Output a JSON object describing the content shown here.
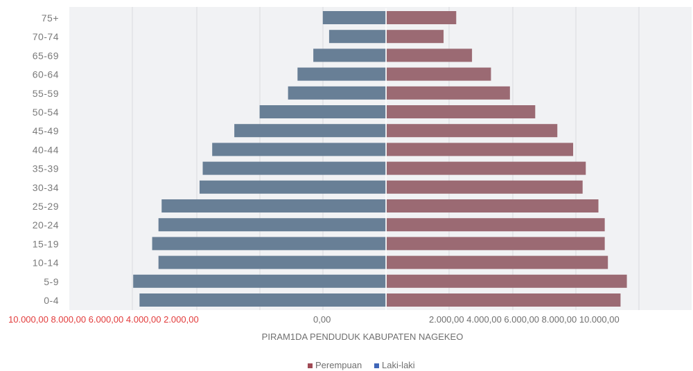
{
  "chart_data": {
    "type": "bar",
    "orientation": "horizontal",
    "title": "",
    "xlabel": "PIRAM1DA PENDUDUK KABUPATEN NAGEKEO",
    "categories": [
      "75+",
      "70-74",
      "65-69",
      "60-64",
      "55-59",
      "50-54",
      "45-49",
      "40-44",
      "35-39",
      "30-34",
      "25-29",
      "20-24",
      "15-19",
      "10-14",
      "5-9",
      "0-4"
    ],
    "series": [
      {
        "name": "Laki-laki",
        "color": "#687f96",
        "values": [
          1000,
          900,
          1150,
          1400,
          1550,
          2000,
          2400,
          2750,
          2900,
          2950,
          3550,
          3600,
          3700,
          3600,
          4000,
          3900
        ]
      },
      {
        "name": "Perempuan",
        "color": "#9b6a73",
        "values": [
          1100,
          900,
          1350,
          1650,
          1950,
          2350,
          2700,
          2950,
          3150,
          3100,
          3350,
          3450,
          3450,
          3500,
          3800,
          3700
        ]
      }
    ],
    "xlim": [
      -10000,
      10000
    ],
    "x_ticks_left": [
      "10.000,00",
      "8.000,00",
      "6.000,00",
      "4.000,00",
      "2.000,00"
    ],
    "x_tick_center": "0,00",
    "x_ticks_right": [
      "2.000,00",
      "4.000,00",
      "6.000,00",
      "8.000,00",
      "10.000,00"
    ],
    "grid": true,
    "legend_position": "bottom",
    "legend": [
      "Perempuan",
      "Laki-laki"
    ]
  }
}
